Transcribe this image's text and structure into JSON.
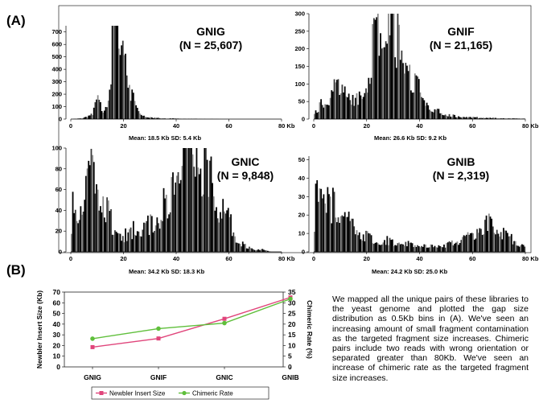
{
  "panel_a_label": "(A)",
  "panel_b_label": "(B)",
  "description": "We mapped all the unique pairs of these libraries to the yeast genome and plotted the gap size distribution as 0.5Kb bins in (A). We've seen an increasing amount of small fragment contamination as the targeted fragment size increases. Chimeric pairs include two reads with wrong orientation or separated greater than 80Kb. We've seen an increase of chimeric rate as the targeted fragment size increases.",
  "chart_data": [
    {
      "type": "bar",
      "name": "GNIG",
      "title": "GNIG",
      "subtitle": "(N = 25,607)",
      "stats": "Mean: 18.5 Kb   SD: 5.4 Kb",
      "x_ticks": [
        "0",
        "20",
        "40",
        "60",
        "80 Kb"
      ],
      "y_ticks": [
        "0",
        "100",
        "200",
        "300",
        "400",
        "500",
        "600",
        "700"
      ],
      "xlim": [
        0,
        80
      ],
      "ylim": [
        0,
        750
      ],
      "bin_width_kb": 0.5,
      "profile_x": [
        0,
        4,
        8,
        9,
        10,
        11,
        12,
        13,
        14,
        15,
        16,
        17,
        18,
        19,
        20,
        21,
        22,
        23,
        24,
        25,
        26,
        27,
        28,
        30,
        32,
        35,
        38,
        40,
        45,
        50,
        60,
        80
      ],
      "profile_y": [
        0,
        4,
        30,
        70,
        120,
        90,
        60,
        80,
        150,
        280,
        500,
        650,
        700,
        630,
        520,
        390,
        270,
        180,
        120,
        70,
        40,
        30,
        20,
        12,
        8,
        5,
        4,
        3,
        2,
        1,
        0,
        0
      ]
    },
    {
      "type": "bar",
      "name": "GNIF",
      "title": "GNIF",
      "subtitle": "(N = 21,165)",
      "stats": "Mean: 26.6 Kb   SD: 9.2 Kb",
      "x_ticks": [
        "0",
        "20",
        "40",
        "60",
        "80 Kb"
      ],
      "y_ticks": [
        "0",
        "50",
        "100",
        "150",
        "200",
        "250",
        "300"
      ],
      "xlim": [
        0,
        80
      ],
      "ylim": [
        0,
        300
      ],
      "bin_width_kb": 0.5,
      "profile_x": [
        0,
        2,
        4,
        6,
        8,
        10,
        12,
        14,
        16,
        18,
        20,
        22,
        24,
        26,
        27,
        28,
        29,
        30,
        32,
        34,
        36,
        38,
        40,
        42,
        44,
        46,
        50,
        55,
        60,
        70,
        80
      ],
      "profile_y": [
        8,
        30,
        40,
        45,
        70,
        90,
        75,
        55,
        45,
        55,
        90,
        150,
        210,
        260,
        290,
        280,
        250,
        230,
        180,
        140,
        110,
        90,
        70,
        50,
        30,
        20,
        10,
        6,
        4,
        2,
        1
      ]
    },
    {
      "type": "bar",
      "name": "GNIC",
      "title": "GNIC",
      "subtitle": "(N = 9,848)",
      "stats": "Mean: 34.2 Kb   SD: 18.3 Kb",
      "x_ticks": [
        "0",
        "20",
        "40",
        "60",
        "80 Kb"
      ],
      "y_ticks": [
        "0",
        "20",
        "40",
        "60",
        "80",
        "100"
      ],
      "xlim": [
        0,
        80
      ],
      "ylim": [
        0,
        100
      ],
      "bin_width_kb": 0.5,
      "profile_x": [
        0,
        1,
        2,
        4,
        6,
        8,
        9,
        10,
        12,
        14,
        16,
        18,
        20,
        22,
        24,
        26,
        28,
        30,
        32,
        34,
        36,
        38,
        40,
        42,
        44,
        46,
        47,
        48,
        50,
        52,
        54,
        56,
        58,
        60,
        62,
        64,
        66,
        68,
        70,
        72,
        74,
        76,
        80
      ],
      "profile_y": [
        10,
        55,
        30,
        35,
        50,
        60,
        65,
        50,
        45,
        35,
        20,
        18,
        12,
        15,
        18,
        16,
        18,
        22,
        25,
        30,
        40,
        50,
        60,
        70,
        78,
        85,
        90,
        80,
        70,
        65,
        50,
        40,
        30,
        25,
        15,
        8,
        5,
        3,
        2,
        2,
        1,
        0,
        0
      ]
    },
    {
      "type": "bar",
      "name": "GNIB",
      "title": "GNIB",
      "subtitle": "(N = 2,319)",
      "stats": "Mean: 24.2 Kb   SD: 25.0 Kb",
      "x_ticks": [
        "0",
        "20",
        "40",
        "60",
        "80 Kb"
      ],
      "y_ticks": [
        "0",
        "10",
        "20",
        "30",
        "40",
        "50"
      ],
      "xlim": [
        0,
        80
      ],
      "ylim": [
        0,
        52
      ],
      "bin_width_kb": 0.5,
      "profile_x": [
        0,
        1,
        2,
        3,
        4,
        6,
        8,
        10,
        12,
        14,
        16,
        18,
        20,
        22,
        25,
        28,
        30,
        35,
        40,
        45,
        50,
        55,
        58,
        60,
        62,
        64,
        66,
        68,
        70,
        72,
        74,
        76,
        78,
        80
      ],
      "profile_y": [
        5,
        40,
        35,
        30,
        28,
        22,
        20,
        17,
        14,
        12,
        10,
        8,
        7,
        6,
        5,
        5,
        4,
        4,
        3,
        3,
        3,
        5,
        6,
        8,
        10,
        12,
        14,
        12,
        10,
        8,
        6,
        5,
        3,
        2
      ]
    },
    {
      "type": "line",
      "name": "insert-vs-chimeric",
      "categories": [
        "GNIG",
        "GNIF",
        "GNIC",
        "GNIB"
      ],
      "ylabel": "Newbler Insert Size (Kb)",
      "y2label": "Chimeric Rate (%)",
      "ylim": [
        0,
        70
      ],
      "y2lim": [
        0,
        35
      ],
      "y_ticks": [
        "0",
        "10",
        "20",
        "30",
        "40",
        "50",
        "60",
        "70"
      ],
      "y2_ticks": [
        "0",
        "5",
        "10",
        "15",
        "20",
        "25",
        "30",
        "35"
      ],
      "legend_position": "bottom",
      "series": [
        {
          "name": "Newbler Insert Size",
          "axis": "left",
          "color": "#e0457b",
          "values": [
            18.5,
            26.6,
            45.0,
            65.0
          ]
        },
        {
          "name": "Chimeric Rate",
          "axis": "right",
          "color": "#5fbf3b",
          "values": [
            13.2,
            17.9,
            20.5,
            31.8
          ]
        }
      ]
    }
  ]
}
